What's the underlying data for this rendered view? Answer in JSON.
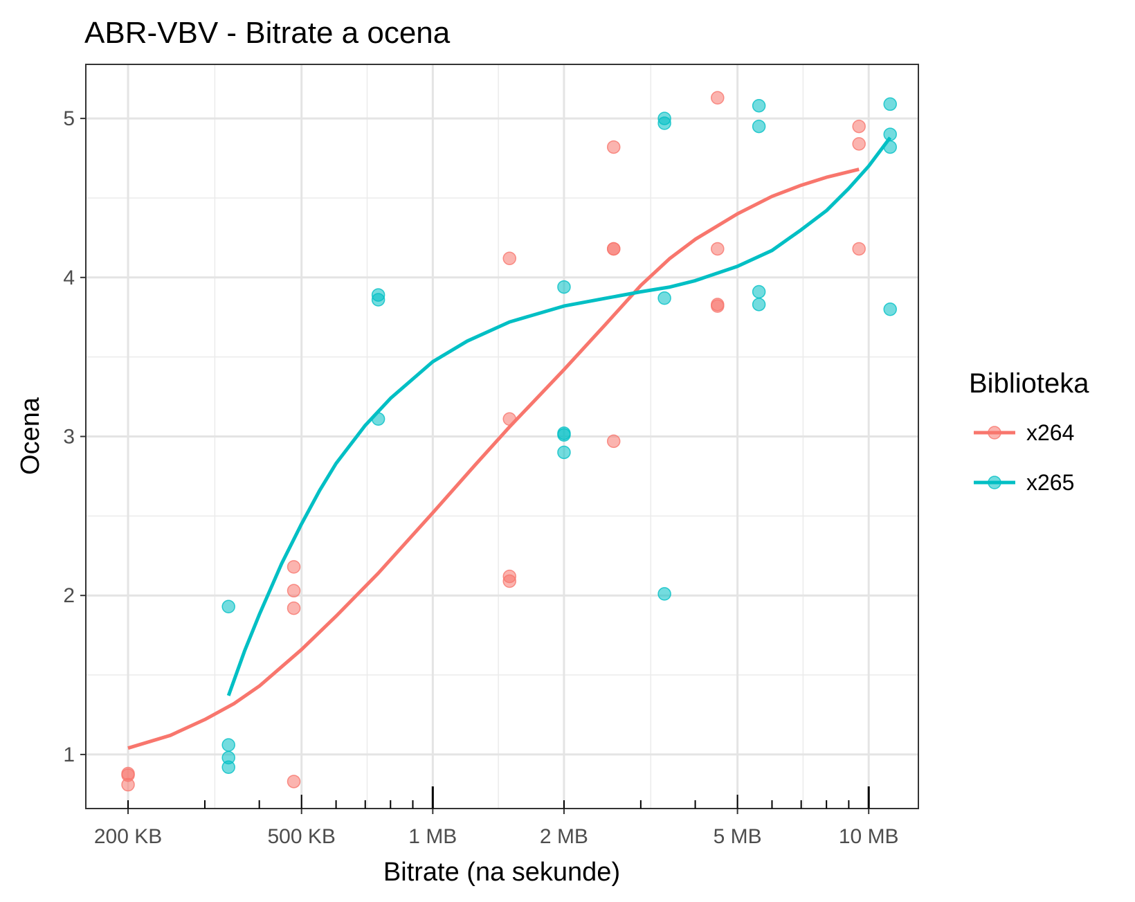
{
  "chart_data": {
    "type": "scatter",
    "title": "ABR-VBV - Bitrate a ocena",
    "xlabel": "Bitrate  (na sekunde)",
    "ylabel": "Ocena",
    "x_scale": "log",
    "x_unit": "MB",
    "xlim": [
      0.16,
      13
    ],
    "ylim": [
      0.66,
      5.34
    ],
    "x_ticks": [
      {
        "value": 0.2,
        "label": "200 KB"
      },
      {
        "value": 0.5,
        "label": "500 KB"
      },
      {
        "value": 1,
        "label": "1 MB"
      },
      {
        "value": 2,
        "label": "2 MB"
      },
      {
        "value": 5,
        "label": "5 MB"
      },
      {
        "value": 10,
        "label": "10 MB"
      }
    ],
    "y_ticks": [
      {
        "value": 1,
        "label": "1"
      },
      {
        "value": 2,
        "label": "2"
      },
      {
        "value": 3,
        "label": "3"
      },
      {
        "value": 4,
        "label": "4"
      },
      {
        "value": 5,
        "label": "5"
      }
    ],
    "grid": true,
    "legend": {
      "title": "Biblioteka",
      "position": "right"
    },
    "series": [
      {
        "name": "x264",
        "color": "#f8766d",
        "points": [
          {
            "x": 0.2,
            "y": 0.88
          },
          {
            "x": 0.2,
            "y": 0.87
          },
          {
            "x": 0.2,
            "y": 0.81
          },
          {
            "x": 0.48,
            "y": 2.18
          },
          {
            "x": 0.48,
            "y": 2.03
          },
          {
            "x": 0.48,
            "y": 1.92
          },
          {
            "x": 0.48,
            "y": 0.83
          },
          {
            "x": 1.5,
            "y": 4.12
          },
          {
            "x": 1.5,
            "y": 3.11
          },
          {
            "x": 1.5,
            "y": 2.12
          },
          {
            "x": 1.5,
            "y": 2.09
          },
          {
            "x": 2.6,
            "y": 4.82
          },
          {
            "x": 2.6,
            "y": 4.18
          },
          {
            "x": 2.6,
            "y": 4.18
          },
          {
            "x": 2.6,
            "y": 2.97
          },
          {
            "x": 4.5,
            "y": 5.13
          },
          {
            "x": 4.5,
            "y": 4.18
          },
          {
            "x": 4.5,
            "y": 3.83
          },
          {
            "x": 4.5,
            "y": 3.82
          },
          {
            "x": 9.5,
            "y": 4.95
          },
          {
            "x": 9.5,
            "y": 4.84
          },
          {
            "x": 9.5,
            "y": 4.18
          }
        ],
        "trend": [
          {
            "x": 0.2,
            "y": 1.04
          },
          {
            "x": 0.25,
            "y": 1.12
          },
          {
            "x": 0.3,
            "y": 1.22
          },
          {
            "x": 0.35,
            "y": 1.32
          },
          {
            "x": 0.4,
            "y": 1.43
          },
          {
            "x": 0.5,
            "y": 1.66
          },
          {
            "x": 0.6,
            "y": 1.87
          },
          {
            "x": 0.75,
            "y": 2.14
          },
          {
            "x": 1.0,
            "y": 2.52
          },
          {
            "x": 1.25,
            "y": 2.82
          },
          {
            "x": 1.5,
            "y": 3.06
          },
          {
            "x": 2.0,
            "y": 3.42
          },
          {
            "x": 2.5,
            "y": 3.71
          },
          {
            "x": 3.0,
            "y": 3.95
          },
          {
            "x": 3.5,
            "y": 4.12
          },
          {
            "x": 4.0,
            "y": 4.24
          },
          {
            "x": 5.0,
            "y": 4.4
          },
          {
            "x": 6.0,
            "y": 4.51
          },
          {
            "x": 7.0,
            "y": 4.58
          },
          {
            "x": 8.0,
            "y": 4.63
          },
          {
            "x": 9.5,
            "y": 4.68
          }
        ]
      },
      {
        "name": "x265",
        "color": "#00bfc4",
        "points": [
          {
            "x": 0.34,
            "y": 1.93
          },
          {
            "x": 0.34,
            "y": 1.06
          },
          {
            "x": 0.34,
            "y": 0.98
          },
          {
            "x": 0.34,
            "y": 0.92
          },
          {
            "x": 0.75,
            "y": 3.89
          },
          {
            "x": 0.75,
            "y": 3.86
          },
          {
            "x": 0.75,
            "y": 3.11
          },
          {
            "x": 2.0,
            "y": 3.94
          },
          {
            "x": 2.0,
            "y": 3.02
          },
          {
            "x": 2.0,
            "y": 3.01
          },
          {
            "x": 2.0,
            "y": 2.9
          },
          {
            "x": 3.4,
            "y": 5.0
          },
          {
            "x": 3.4,
            "y": 4.97
          },
          {
            "x": 3.4,
            "y": 3.87
          },
          {
            "x": 3.4,
            "y": 2.01
          },
          {
            "x": 5.6,
            "y": 5.08
          },
          {
            "x": 5.6,
            "y": 4.95
          },
          {
            "x": 5.6,
            "y": 3.91
          },
          {
            "x": 5.6,
            "y": 3.83
          },
          {
            "x": 11.2,
            "y": 5.09
          },
          {
            "x": 11.2,
            "y": 4.9
          },
          {
            "x": 11.2,
            "y": 4.82
          },
          {
            "x": 11.2,
            "y": 3.8
          }
        ],
        "trend": [
          {
            "x": 0.34,
            "y": 1.37
          },
          {
            "x": 0.37,
            "y": 1.65
          },
          {
            "x": 0.4,
            "y": 1.88
          },
          {
            "x": 0.45,
            "y": 2.2
          },
          {
            "x": 0.5,
            "y": 2.45
          },
          {
            "x": 0.55,
            "y": 2.66
          },
          {
            "x": 0.6,
            "y": 2.83
          },
          {
            "x": 0.7,
            "y": 3.07
          },
          {
            "x": 0.8,
            "y": 3.24
          },
          {
            "x": 1.0,
            "y": 3.47
          },
          {
            "x": 1.2,
            "y": 3.6
          },
          {
            "x": 1.5,
            "y": 3.72
          },
          {
            "x": 2.0,
            "y": 3.82
          },
          {
            "x": 2.5,
            "y": 3.87
          },
          {
            "x": 3.0,
            "y": 3.91
          },
          {
            "x": 3.5,
            "y": 3.94
          },
          {
            "x": 4.0,
            "y": 3.98
          },
          {
            "x": 5.0,
            "y": 4.07
          },
          {
            "x": 6.0,
            "y": 4.17
          },
          {
            "x": 7.0,
            "y": 4.3
          },
          {
            "x": 8.0,
            "y": 4.42
          },
          {
            "x": 9.0,
            "y": 4.56
          },
          {
            "x": 10.0,
            "y": 4.7
          },
          {
            "x": 11.2,
            "y": 4.88
          }
        ]
      }
    ]
  }
}
